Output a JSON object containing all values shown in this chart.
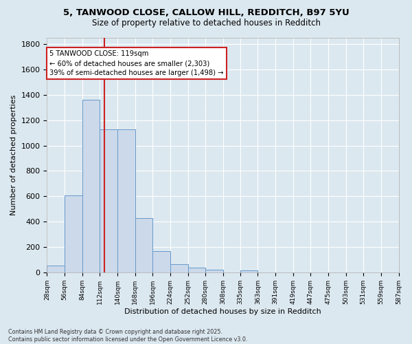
{
  "title_line1": "5, TANWOOD CLOSE, CALLOW HILL, REDDITCH, B97 5YU",
  "title_line2": "Size of property relative to detached houses in Redditch",
  "xlabel": "Distribution of detached houses by size in Redditch",
  "ylabel": "Number of detached properties",
  "bar_left_edges": [
    28,
    56,
    84,
    112,
    140,
    168,
    196,
    224,
    252,
    280,
    308,
    335,
    363,
    391,
    419,
    447,
    475,
    503,
    531,
    559
  ],
  "bar_widths": [
    28,
    28,
    28,
    28,
    28,
    28,
    28,
    28,
    28,
    28,
    27,
    28,
    28,
    28,
    28,
    28,
    28,
    28,
    28,
    28
  ],
  "bar_heights": [
    55,
    605,
    1360,
    1130,
    1130,
    430,
    170,
    65,
    35,
    20,
    0,
    15,
    0,
    0,
    0,
    0,
    0,
    0,
    0,
    0
  ],
  "bar_color": "#ccd9ea",
  "bar_edge_color": "#6699cc",
  "vline_x": 119,
  "vline_color": "#cc2222",
  "annotation_text": "5 TANWOOD CLOSE: 119sqm\n← 60% of detached houses are smaller (2,303)\n39% of semi-detached houses are larger (1,498) →",
  "annotation_box_color": "#ffffff",
  "annotation_box_edge": "#cc2222",
  "ylim": [
    0,
    1850
  ],
  "yticks": [
    0,
    200,
    400,
    600,
    800,
    1000,
    1200,
    1400,
    1600,
    1800
  ],
  "xtick_labels": [
    "28sqm",
    "56sqm",
    "84sqm",
    "112sqm",
    "140sqm",
    "168sqm",
    "196sqm",
    "224sqm",
    "252sqm",
    "280sqm",
    "308sqm",
    "335sqm",
    "363sqm",
    "391sqm",
    "419sqm",
    "447sqm",
    "475sqm",
    "503sqm",
    "531sqm",
    "559sqm",
    "587sqm"
  ],
  "xtick_positions": [
    28,
    56,
    84,
    112,
    140,
    168,
    196,
    224,
    252,
    280,
    308,
    335,
    363,
    391,
    419,
    447,
    475,
    503,
    531,
    559,
    587
  ],
  "xlim": [
    28,
    587
  ],
  "background_color": "#dce8f0",
  "grid_color": "#ffffff",
  "footer_line1": "Contains HM Land Registry data © Crown copyright and database right 2025.",
  "footer_line2": "Contains public sector information licensed under the Open Government Licence v3.0."
}
